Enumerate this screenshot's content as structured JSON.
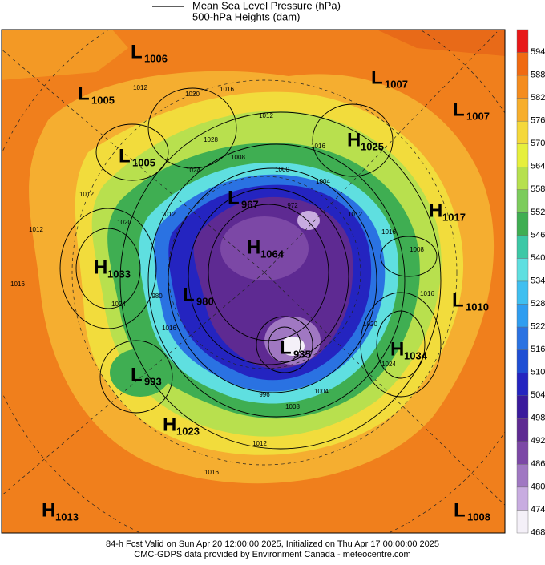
{
  "legend": {
    "line_label": "Mean Sea Level Pressure (hPa)",
    "fill_label": "500-hPa Heights (dam)"
  },
  "colorbar": {
    "ticks": [
      594,
      588,
      582,
      576,
      570,
      564,
      558,
      552,
      546,
      540,
      534,
      528,
      522,
      516,
      510,
      504,
      498,
      492,
      486,
      480,
      474,
      468
    ],
    "colors": [
      "#e81818",
      "#f06a12",
      "#f48c1e",
      "#f7ae2c",
      "#f5d83a",
      "#e6ef3c",
      "#b6e04e",
      "#7ccc5c",
      "#3fae52",
      "#3cc8a6",
      "#5fdfe0",
      "#3fbff0",
      "#2f9df0",
      "#2a72e2",
      "#1e4ed4",
      "#2424c0",
      "#3a1a9c",
      "#5e2a92",
      "#7c48a6",
      "#a078c2",
      "#c8ace0",
      "#f4f0f8"
    ]
  },
  "systems": [
    {
      "kind": "L",
      "value": 1006
    },
    {
      "kind": "L",
      "value": 1005
    },
    {
      "kind": "L",
      "value": 1005
    },
    {
      "kind": "L",
      "value": 1007
    },
    {
      "kind": "L",
      "value": 1007
    },
    {
      "kind": "H",
      "value": 1025
    },
    {
      "kind": "L",
      "value": 967
    },
    {
      "kind": "H",
      "value": 1017
    },
    {
      "kind": "H",
      "value": 1064
    },
    {
      "kind": "H",
      "value": 1033
    },
    {
      "kind": "L",
      "value": 980
    },
    {
      "kind": "L",
      "value": 1010
    },
    {
      "kind": "H",
      "value": 1034
    },
    {
      "kind": "L",
      "value": 935
    },
    {
      "kind": "L",
      "value": 993
    },
    {
      "kind": "H",
      "value": 1023
    },
    {
      "kind": "H",
      "value": 1013
    },
    {
      "kind": "L",
      "value": 1008
    }
  ],
  "contour_labels": [
    1012,
    1016,
    1020,
    1012,
    1016,
    1028,
    1008,
    1024,
    1004,
    1000,
    1012,
    1012,
    1020,
    1012,
    1016,
    1008,
    1012,
    1016,
    1020,
    1024,
    1008,
    1004,
    1012,
    1016,
    1016,
    1024,
    1016,
    980,
    996,
    972
  ],
  "footer": {
    "line1": "84-h Fcst Valid on Sun Apr 20 12:00:00 2025, Initialized on Thu Apr 17 00:00:00 2025",
    "line2": "CMC-GDPS data provided by Environment Canada - meteocentre.com"
  }
}
